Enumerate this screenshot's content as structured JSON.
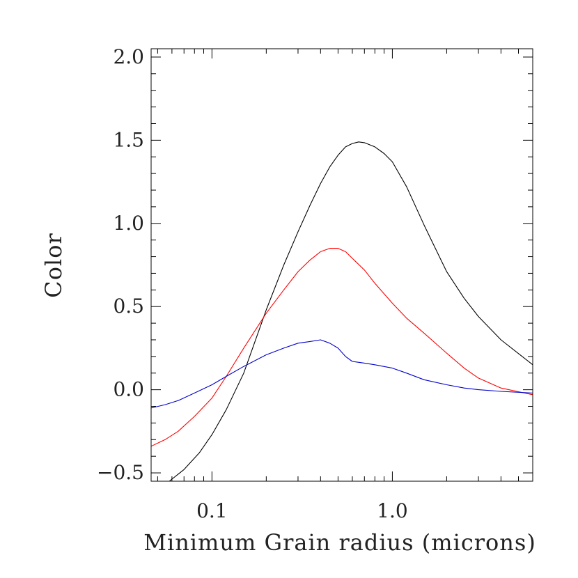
{
  "chart_data": {
    "type": "line",
    "title": "",
    "xlabel": "Minimum Grain radius (microns)",
    "ylabel": "Color",
    "xscale": "log",
    "xlim": [
      0.046,
      6.0
    ],
    "ylim": [
      -0.55,
      2.05
    ],
    "grid": false,
    "legend": "none",
    "x_ticks": [
      {
        "value": 0.1,
        "label": "0.1"
      },
      {
        "value": 1.0,
        "label": "1.0"
      }
    ],
    "y_ticks": [
      {
        "value": -0.5,
        "label": "−0.5"
      },
      {
        "value": 0.0,
        "label": "0.0"
      },
      {
        "value": 0.5,
        "label": "0.5"
      },
      {
        "value": 1.0,
        "label": "1.0"
      },
      {
        "value": 1.5,
        "label": "1.5"
      },
      {
        "value": 2.0,
        "label": "2.0"
      }
    ],
    "series": [
      {
        "color": "#000000",
        "x": [
          0.058,
          0.07,
          0.085,
          0.1,
          0.12,
          0.15,
          0.2,
          0.25,
          0.3,
          0.35,
          0.4,
          0.45,
          0.5,
          0.55,
          0.6,
          0.65,
          0.7,
          0.8,
          0.9,
          1.0,
          1.2,
          1.5,
          2.0,
          2.5,
          3.0,
          4.0,
          6.0
        ],
        "y": [
          -0.55,
          -0.48,
          -0.38,
          -0.27,
          -0.12,
          0.1,
          0.48,
          0.75,
          0.95,
          1.11,
          1.24,
          1.34,
          1.41,
          1.46,
          1.48,
          1.49,
          1.485,
          1.46,
          1.42,
          1.37,
          1.22,
          0.99,
          0.71,
          0.55,
          0.44,
          0.3,
          0.15
        ]
      },
      {
        "color": "#ff0000",
        "x": [
          0.046,
          0.055,
          0.065,
          0.08,
          0.1,
          0.12,
          0.15,
          0.2,
          0.25,
          0.3,
          0.35,
          0.4,
          0.45,
          0.5,
          0.55,
          0.6,
          0.7,
          0.8,
          1.0,
          1.2,
          1.5,
          2.0,
          2.5,
          3.0,
          4.0,
          6.0
        ],
        "y": [
          -0.34,
          -0.3,
          -0.25,
          -0.16,
          -0.05,
          0.08,
          0.25,
          0.46,
          0.6,
          0.71,
          0.78,
          0.83,
          0.85,
          0.85,
          0.83,
          0.79,
          0.72,
          0.64,
          0.52,
          0.43,
          0.34,
          0.22,
          0.13,
          0.07,
          0.01,
          -0.03
        ]
      },
      {
        "color": "#0000cc",
        "x": [
          0.046,
          0.055,
          0.065,
          0.08,
          0.1,
          0.12,
          0.15,
          0.2,
          0.25,
          0.3,
          0.35,
          0.4,
          0.45,
          0.5,
          0.55,
          0.6,
          0.7,
          0.8,
          1.0,
          1.2,
          1.5,
          2.0,
          2.5,
          3.0,
          4.0,
          6.0
        ],
        "y": [
          -0.11,
          -0.09,
          -0.065,
          -0.02,
          0.03,
          0.08,
          0.14,
          0.21,
          0.25,
          0.28,
          0.29,
          0.3,
          0.28,
          0.25,
          0.2,
          0.17,
          0.16,
          0.15,
          0.13,
          0.1,
          0.06,
          0.03,
          0.01,
          0.0,
          -0.01,
          -0.02
        ]
      }
    ]
  }
}
